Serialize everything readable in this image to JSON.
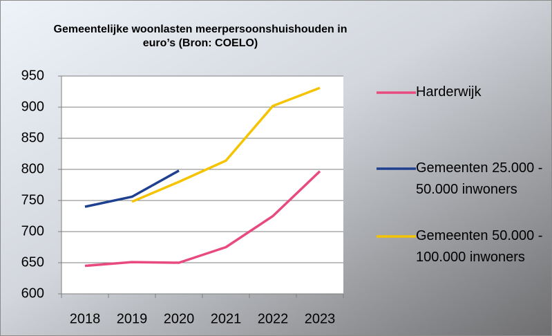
{
  "chart_data": {
    "type": "line",
    "title": "Gemeentelijke woonlasten meerpersoonshuishouden in euro’s (Bron: COELO)",
    "categories": [
      "2018",
      "2019",
      "2020",
      "2021",
      "2022",
      "2023"
    ],
    "series": [
      {
        "name": "Harderwijk",
        "color": "#e84a7f",
        "values": [
          645,
          651,
          650,
          675,
          725,
          797
        ]
      },
      {
        "name": "Gemeenten 25.000 - 50.000 inwoners",
        "color": "#1f3f8f",
        "values": [
          740,
          756,
          798,
          null,
          null,
          null
        ]
      },
      {
        "name": "Gemeenten 50.000 - 100.000 inwoners",
        "color": "#f5c400",
        "values": [
          null,
          748,
          780,
          814,
          902,
          931
        ]
      }
    ],
    "ylim": [
      600,
      950
    ],
    "yticks": [
      600,
      650,
      700,
      750,
      800,
      850,
      900,
      950
    ],
    "grid": true,
    "legend": "right"
  }
}
